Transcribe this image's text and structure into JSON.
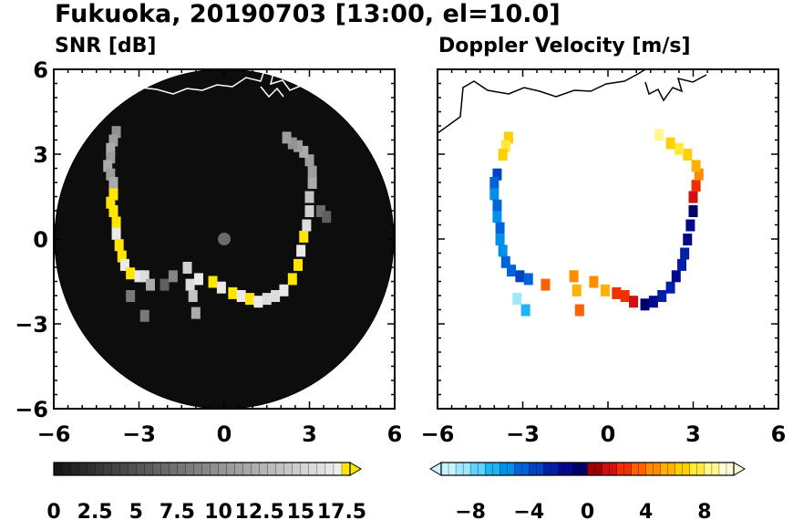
{
  "title": "Fukuoka, 20190703 [13:00, el=10.0]",
  "colors": {
    "snr_map_bg": "#0d0d0d",
    "coast": "#ffffff",
    "coast_right": "#000000",
    "snr_high": "#ffe600",
    "center_marker": "#6a6a6a"
  },
  "chart_data": [
    {
      "type": "heatmap",
      "title": "SNR [dB]",
      "xlim": [
        -6,
        6
      ],
      "ylim": [
        -6,
        6
      ],
      "xticks": [
        "−6",
        "−3",
        "0",
        "3",
        "6"
      ],
      "yticks": [
        "6",
        "3",
        "0",
        "−3",
        "−6"
      ],
      "range_ring_radius_km": 6,
      "colorbar": {
        "min": 0,
        "max": 18,
        "levels": 36,
        "ticks": [
          "0",
          "2.5",
          "5",
          "7.5",
          "10",
          "12.5",
          "15",
          "17.5"
        ],
        "tick_values": [
          0,
          2.5,
          5,
          7.5,
          10,
          12.5,
          15,
          17.5
        ],
        "extend": "max",
        "extend_color": "#ffe600"
      },
      "echo_points": [
        [
          -3.8,
          3.8,
          10
        ],
        [
          -3.9,
          3.5,
          11
        ],
        [
          -4.0,
          3.2,
          12
        ],
        [
          -4.0,
          2.9,
          11
        ],
        [
          -4.1,
          2.6,
          12
        ],
        [
          -4.0,
          2.3,
          11
        ],
        [
          -3.9,
          2.0,
          12
        ],
        [
          -3.9,
          1.6,
          18
        ],
        [
          -4.0,
          1.3,
          18
        ],
        [
          -3.9,
          1.0,
          18
        ],
        [
          -3.8,
          0.6,
          18
        ],
        [
          -3.8,
          0.2,
          17
        ],
        [
          -3.7,
          -0.2,
          18
        ],
        [
          -3.6,
          -0.6,
          18
        ],
        [
          -3.5,
          -0.9,
          17
        ],
        [
          -3.3,
          -1.2,
          18
        ],
        [
          -3.0,
          -1.3,
          17
        ],
        [
          -2.8,
          -1.3,
          16
        ],
        [
          -2.6,
          -1.6,
          12
        ],
        [
          -3.3,
          -2.0,
          8
        ],
        [
          -2.8,
          -2.7,
          8
        ],
        [
          -2.1,
          -1.6,
          6
        ],
        [
          -1.8,
          -1.3,
          9
        ],
        [
          -1.3,
          -1.0,
          15
        ],
        [
          -1.2,
          -1.6,
          16
        ],
        [
          -1.1,
          -2.0,
          14
        ],
        [
          -1.0,
          -2.6,
          12
        ],
        [
          -0.9,
          -1.4,
          17
        ],
        [
          -0.4,
          -1.5,
          18
        ],
        [
          -0.1,
          -1.7,
          17
        ],
        [
          0.3,
          -1.9,
          18
        ],
        [
          0.6,
          -2.0,
          17
        ],
        [
          0.9,
          -2.1,
          18
        ],
        [
          1.2,
          -2.2,
          17
        ],
        [
          1.5,
          -2.1,
          16
        ],
        [
          1.8,
          -2.0,
          16
        ],
        [
          2.1,
          -1.8,
          17
        ],
        [
          2.4,
          -1.4,
          18
        ],
        [
          2.6,
          -0.9,
          18
        ],
        [
          2.7,
          -0.4,
          17
        ],
        [
          2.8,
          0.1,
          18
        ],
        [
          2.9,
          0.5,
          16
        ],
        [
          3.0,
          1.0,
          15
        ],
        [
          3.0,
          1.5,
          14
        ],
        [
          3.1,
          2.0,
          12
        ],
        [
          3.1,
          2.4,
          11
        ],
        [
          3.0,
          2.8,
          11
        ],
        [
          2.8,
          3.1,
          12
        ],
        [
          2.6,
          3.3,
          11
        ],
        [
          2.4,
          3.4,
          10
        ],
        [
          2.2,
          3.6,
          11
        ],
        [
          3.4,
          1.0,
          7
        ],
        [
          3.6,
          0.8,
          6
        ]
      ]
    },
    {
      "type": "heatmap",
      "title": "Doppler Velocity [m/s]",
      "xlim": [
        -6,
        6
      ],
      "ylim": [
        -6,
        6
      ],
      "xticks": [
        "−6",
        "−3",
        "0",
        "3",
        "6"
      ],
      "yticks": [],
      "colorbar": {
        "min": -10,
        "max": 10,
        "levels": 40,
        "ticks": [
          "−8",
          "−4",
          "0",
          "4",
          "8"
        ],
        "tick_values": [
          -8,
          -4,
          0,
          4,
          8
        ],
        "extend": "both",
        "palette": [
          "#c8f4ff",
          "#9ee8ff",
          "#5fd3ff",
          "#1fb4f5",
          "#0090e8",
          "#0064d8",
          "#0044c0",
          "#0020a8",
          "#000a8c",
          "#00006a",
          "#a00000",
          "#d01010",
          "#f03000",
          "#ff6000",
          "#ff8c00",
          "#ffb000",
          "#ffd000",
          "#ffe840",
          "#fff890",
          "#fffcd8"
        ]
      },
      "echo_points": [
        [
          -3.5,
          3.6,
          6
        ],
        [
          -3.6,
          3.3,
          7
        ],
        [
          -3.7,
          3.0,
          6
        ],
        [
          -3.9,
          2.3,
          -4
        ],
        [
          -4.0,
          2.0,
          -5
        ],
        [
          -4.0,
          1.6,
          -6
        ],
        [
          -3.9,
          1.2,
          -5
        ],
        [
          -3.9,
          0.8,
          -6
        ],
        [
          -3.8,
          0.4,
          -5
        ],
        [
          -3.8,
          0.0,
          -6
        ],
        [
          -3.7,
          -0.4,
          -6
        ],
        [
          -3.6,
          -0.8,
          -5
        ],
        [
          -3.4,
          -1.1,
          -5
        ],
        [
          -3.1,
          -1.3,
          -4
        ],
        [
          -2.8,
          -1.4,
          -5
        ],
        [
          -3.2,
          -2.1,
          -9
        ],
        [
          -2.9,
          -2.5,
          -7
        ],
        [
          -2.2,
          -1.6,
          3
        ],
        [
          -1.2,
          -1.3,
          4
        ],
        [
          -1.1,
          -1.8,
          5
        ],
        [
          -1.0,
          -2.5,
          3
        ],
        [
          -0.5,
          -1.5,
          4
        ],
        [
          -0.1,
          -1.8,
          5
        ],
        [
          0.3,
          -1.9,
          2
        ],
        [
          0.6,
          -2.0,
          2
        ],
        [
          0.9,
          -2.2,
          1
        ],
        [
          1.3,
          -2.3,
          -1
        ],
        [
          1.6,
          -2.2,
          -2
        ],
        [
          1.9,
          -2.0,
          -3
        ],
        [
          2.2,
          -1.7,
          -3
        ],
        [
          2.4,
          -1.3,
          -2
        ],
        [
          2.6,
          -0.9,
          -3
        ],
        [
          2.7,
          -0.5,
          -3
        ],
        [
          2.8,
          0.0,
          -2
        ],
        [
          2.9,
          0.5,
          -2
        ],
        [
          3.0,
          1.0,
          -1
        ],
        [
          3.0,
          1.5,
          1
        ],
        [
          3.1,
          1.9,
          2
        ],
        [
          3.2,
          2.3,
          4
        ],
        [
          3.1,
          2.6,
          5
        ],
        [
          2.8,
          3.0,
          6
        ],
        [
          2.5,
          3.2,
          7
        ],
        [
          2.2,
          3.4,
          6
        ],
        [
          1.8,
          3.7,
          8
        ]
      ]
    }
  ]
}
